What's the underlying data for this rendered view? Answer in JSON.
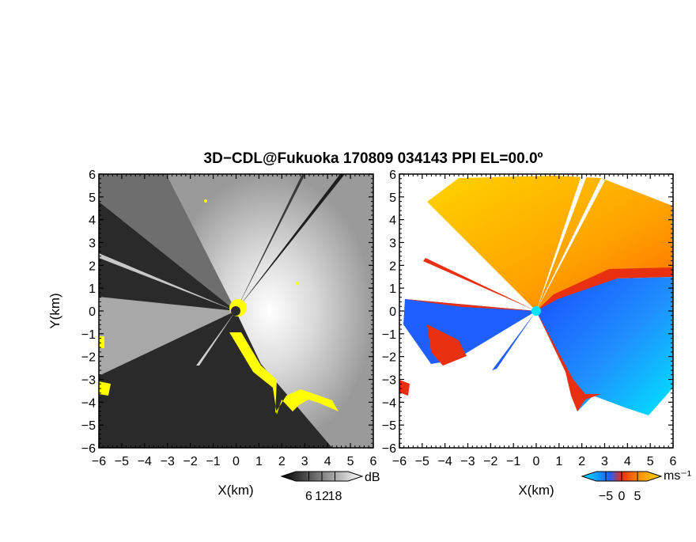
{
  "title": "3D−CDL@Fukuoka 170809 034143 PPI EL=00.0º",
  "chart_data": [
    {
      "type": "heatmap",
      "field": "reflectivity",
      "xlabel": "X(km)",
      "ylabel": "Y(km)",
      "xlim": [
        -6,
        6
      ],
      "ylim": [
        -6,
        6
      ],
      "xticks": [
        "−6",
        "−5",
        "−4",
        "−3",
        "−2",
        "−1",
        "0",
        "1",
        "2",
        "3",
        "4",
        "5",
        "6"
      ],
      "yticks": [
        "6",
        "5",
        "4",
        "3",
        "2",
        "1",
        "0",
        "−1",
        "−2",
        "−3",
        "−4",
        "−5",
        "−6"
      ],
      "colorbar": {
        "unit": "dB",
        "ticks": [
          "6",
          "12",
          "18"
        ],
        "values": [
          6,
          12,
          18
        ],
        "range": [
          0,
          24
        ]
      },
      "colors": {
        "dark": "#1a1a1a",
        "bright": "#f2f2f2",
        "highlight": "#ffff00"
      }
    },
    {
      "type": "heatmap",
      "field": "radial velocity",
      "xlabel": "X(km)",
      "ylabel": "",
      "xlim": [
        -6,
        6
      ],
      "ylim": [
        -6,
        6
      ],
      "xticks": [
        "−6",
        "−5",
        "−4",
        "−3",
        "−2",
        "−1",
        "0",
        "1",
        "2",
        "3",
        "4",
        "5",
        "6"
      ],
      "yticks": [
        "6",
        "5",
        "4",
        "3",
        "2",
        "1",
        "0",
        "−1",
        "−2",
        "−3",
        "−4",
        "−5",
        "−6"
      ],
      "colorbar": {
        "unit": "ms⁻¹",
        "ticks": [
          "−5",
          "0",
          "5"
        ],
        "values": [
          -5,
          0,
          5
        ],
        "range": [
          -8,
          8
        ]
      },
      "colors": {
        "cyan": "#00e5ff",
        "blue": "#1f5fff",
        "red": "#e83010",
        "orange": "#ff9a00",
        "yellow": "#ffd400"
      }
    }
  ]
}
